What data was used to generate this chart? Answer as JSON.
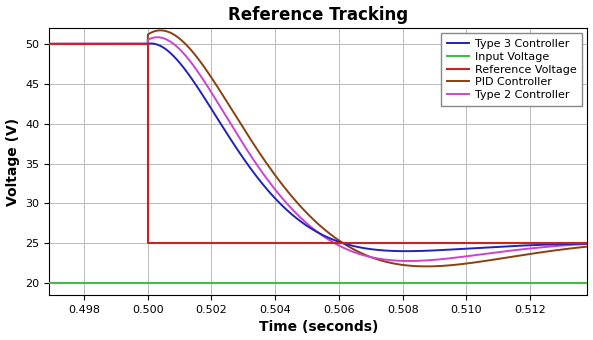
{
  "title": "Reference Tracking",
  "xlabel": "Time (seconds)",
  "ylabel": "Voltage (V)",
  "xlim": [
    0.4969,
    0.5138
  ],
  "ylim": [
    18.5,
    52
  ],
  "yticks": [
    20,
    25,
    30,
    35,
    40,
    45,
    50
  ],
  "xticks": [
    0.498,
    0.5,
    0.502,
    0.504,
    0.506,
    0.508,
    0.51,
    0.512
  ],
  "colors": {
    "type3": "#2222bb",
    "input": "#44bb44",
    "reference": "#cc2222",
    "pid": "#8B4010",
    "type2": "#cc44cc"
  },
  "legend_labels": [
    "Type 3 Controller",
    "Input Voltage",
    "Reference Voltage",
    "PID Controller",
    "Type 2 Controller",
    ""
  ],
  "background_color": "#ffffff",
  "grid_color": "#bbbbbb",
  "title_fontsize": 12,
  "label_fontsize": 10,
  "legend_fontsize": 8
}
